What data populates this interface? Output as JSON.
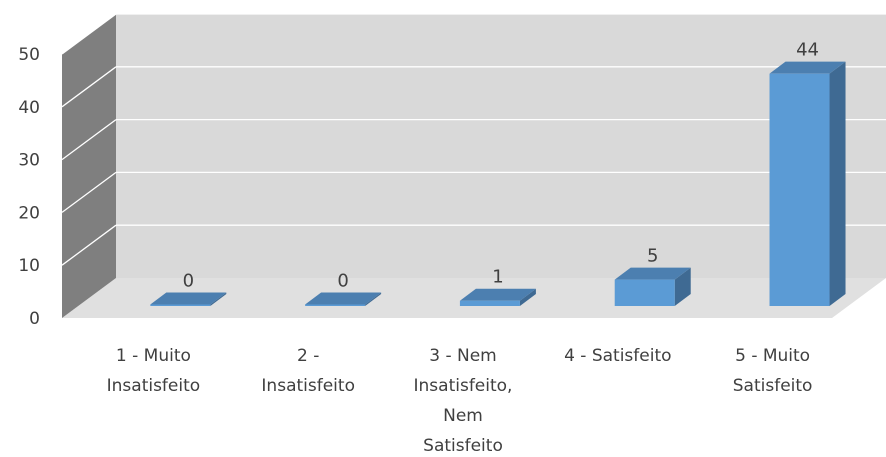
{
  "chart_data": {
    "type": "bar",
    "categories": [
      [
        "1 - Muito",
        "Insatisfeito"
      ],
      [
        "2 -",
        "Insatisfeito"
      ],
      [
        "3 - Nem",
        "Insatisfeito,",
        "Nem",
        "Satisfeito"
      ],
      [
        "4 - Satisfeito"
      ],
      [
        "5 - Muito",
        "Satisfeito"
      ]
    ],
    "values": [
      0,
      0,
      1,
      5,
      44
    ],
    "data_labels": [
      "0",
      "0",
      "1",
      "5",
      "44"
    ],
    "yticks": [
      "0",
      "10",
      "20",
      "30",
      "40",
      "50"
    ],
    "ylim": [
      0,
      50
    ],
    "grid": true,
    "style": "3d-column",
    "colors": {
      "bar_front": "#5B9BD5",
      "bar_side": "#3F6A93",
      "bar_top": "#4C7FB0",
      "back_wall": "#D9D9D9",
      "side_wall": "#7F7F7F",
      "floor": "#E0E0E0",
      "gridline": "#FFFFFF"
    }
  }
}
